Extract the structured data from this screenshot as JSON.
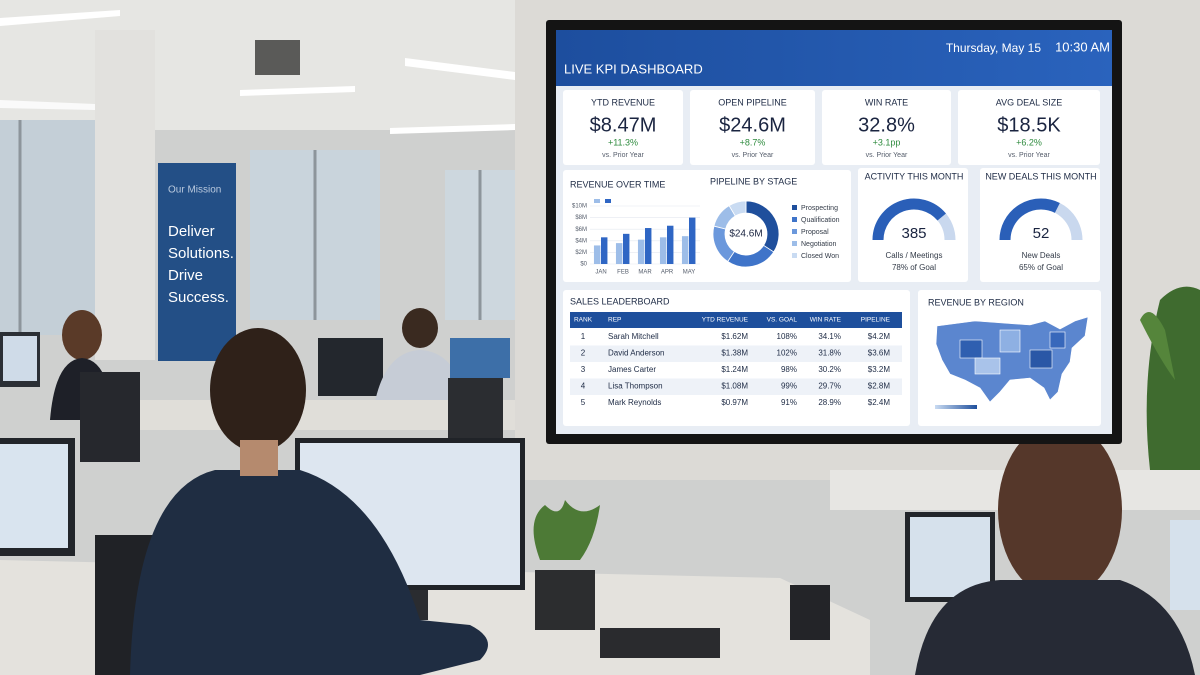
{
  "poster": {
    "heading": "Our Mission",
    "lines": [
      "Deliver",
      "Solutions.",
      "Drive",
      "Success."
    ]
  },
  "dashboard": {
    "title": "LIVE KPI DASHBOARD",
    "date": "Thursday, May 15",
    "time": "10:30 AM",
    "kpis": [
      {
        "label": "YTD REVENUE",
        "value": "$8.47M",
        "change": "+11.3%",
        "note": "vs. Prior Year"
      },
      {
        "label": "OPEN PIPELINE",
        "value": "$24.6M",
        "change": "+8.7%",
        "note": "vs. Prior Year"
      },
      {
        "label": "WIN RATE",
        "value": "32.8%",
        "change": "+3.1pp",
        "note": "vs. Prior Year"
      },
      {
        "label": "AVG DEAL SIZE",
        "value": "$18.5K",
        "change": "+6.2%",
        "note": "vs. Prior Year"
      }
    ],
    "leaderboard": {
      "title": "SALES LEADERBOARD",
      "columns": [
        "RANK",
        "REP",
        "YTD REVENUE",
        "VS. GOAL",
        "WIN RATE",
        "PIPELINE"
      ],
      "rows": [
        [
          "1",
          "Sarah Mitchell",
          "$1.62M",
          "108%",
          "34.1%",
          "$4.2M"
        ],
        [
          "2",
          "David Anderson",
          "$1.38M",
          "102%",
          "31.8%",
          "$3.6M"
        ],
        [
          "3",
          "James Carter",
          "$1.24M",
          "98%",
          "30.2%",
          "$3.2M"
        ],
        [
          "4",
          "Lisa Thompson",
          "$1.08M",
          "99%",
          "29.7%",
          "$2.8M"
        ],
        [
          "5",
          "Mark Reynolds",
          "$0.97M",
          "91%",
          "28.9%",
          "$2.4M"
        ]
      ]
    },
    "map": {
      "title": "REVENUE BY REGION"
    }
  },
  "chart_data": [
    {
      "type": "bar",
      "title": "REVENUE OVER TIME",
      "categories": [
        "JAN",
        "FEB",
        "MAR",
        "APR",
        "MAY"
      ],
      "series": [
        {
          "color": "#9dbde8",
          "values": [
            3.2,
            3.6,
            4.2,
            4.6,
            4.8
          ]
        },
        {
          "color": "#2f66c4",
          "values": [
            4.6,
            5.2,
            6.2,
            6.6,
            8
          ]
        }
      ],
      "ylim": [
        0,
        10
      ],
      "yticks": [
        {
          "value": 0,
          "label": "$0"
        },
        {
          "value": 2,
          "label": "$2M"
        },
        {
          "value": 4,
          "label": "$4M"
        },
        {
          "value": 6,
          "label": "$6M"
        },
        {
          "value": 8,
          "label": "$8M"
        },
        {
          "value": 10,
          "label": "$10M"
        }
      ]
    },
    {
      "type": "donut",
      "title": "PIPELINE BY STAGE",
      "center_label": "$24.6M",
      "categories": [
        "Prospecting",
        "Qualification",
        "Proposal",
        "Negotiation",
        "Closed Won"
      ],
      "values": [
        8.4,
        6.2,
        4.8,
        3.1,
        2.1
      ],
      "colors": [
        "#1f4f9c",
        "#3f74c9",
        "#6b98dc",
        "#9dbde8",
        "#c9dbf2"
      ]
    },
    {
      "type": "gauge",
      "title": "ACTIVITY THIS MONTH",
      "value": 385,
      "caption": "Calls / Meetings",
      "percent": 78,
      "percent_label": "78% of Goal",
      "color": "#2a5fb8"
    },
    {
      "type": "gauge",
      "title": "NEW DEALS THIS MONTH",
      "value": 52,
      "caption": "New Deals",
      "percent": 65,
      "percent_label": "65% of Goal",
      "color": "#2a5fb8"
    }
  ]
}
